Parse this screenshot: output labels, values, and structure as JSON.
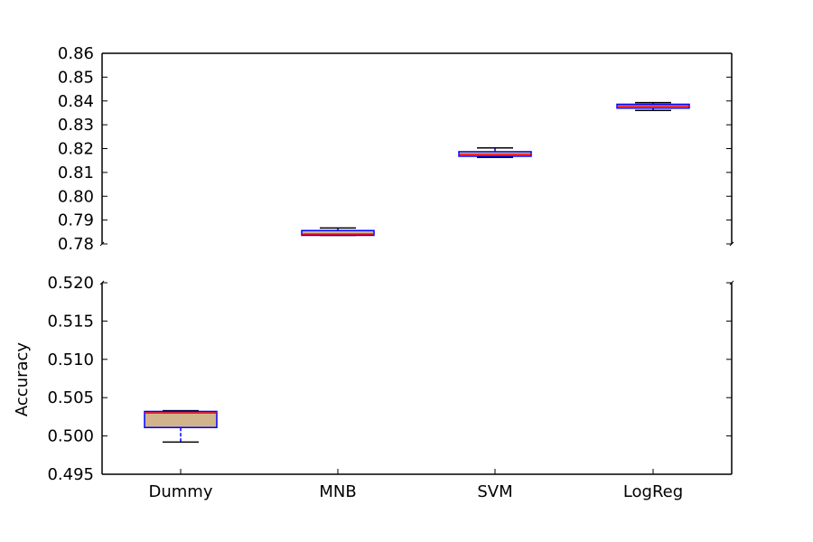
{
  "chart_data": {
    "type": "box",
    "ylabel": "Accuracy",
    "categories": [
      "Dummy",
      "MNB",
      "SVM",
      "LogReg"
    ],
    "broken_axis": true,
    "upper_panel": {
      "ylim": [
        0.78,
        0.86
      ],
      "yticks": [
        "0.78",
        "0.79",
        "0.80",
        "0.81",
        "0.82",
        "0.83",
        "0.84",
        "0.85",
        "0.86"
      ]
    },
    "lower_panel": {
      "ylim": [
        0.495,
        0.52
      ],
      "yticks": [
        "0.495",
        "0.500",
        "0.505",
        "0.510",
        "0.515",
        "0.520"
      ]
    },
    "boxes": [
      {
        "category": "Dummy",
        "whisker_low": 0.4992,
        "q1": 0.5011,
        "median": 0.503,
        "q3": 0.5032,
        "whisker_high": 0.5033
      },
      {
        "category": "MNB",
        "whisker_low": 0.7836,
        "q1": 0.7836,
        "median": 0.7841,
        "q3": 0.7856,
        "whisker_high": 0.7867
      },
      {
        "category": "SVM",
        "whisker_low": 0.8163,
        "q1": 0.8168,
        "median": 0.8176,
        "q3": 0.8187,
        "whisker_high": 0.8203
      },
      {
        "category": "LogReg",
        "whisker_low": 0.836,
        "q1": 0.837,
        "median": 0.8378,
        "q3": 0.8386,
        "whisker_high": 0.8393
      }
    ],
    "colors": {
      "box_edge": "#0000ff",
      "box_fill": "#d2b48c",
      "median": "#ff0000",
      "whisker": "#0000ff",
      "cap": "#000000"
    },
    "grid": false,
    "legend": "none"
  }
}
